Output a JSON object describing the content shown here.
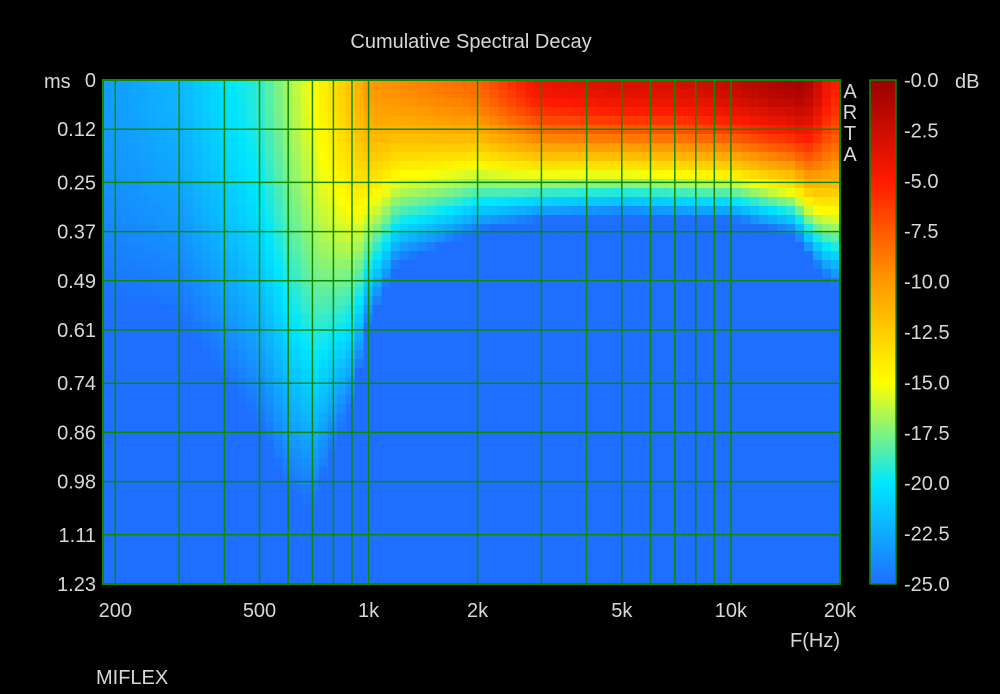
{
  "chart_data": {
    "type": "heatmap",
    "title": "Cumulative Spectral Decay",
    "xlabel": "F(Hz)",
    "ylabel": "ms",
    "watermark": "ARTA",
    "footer": "MIFLEX",
    "x_scale": "log",
    "xlim": [
      185,
      20000
    ],
    "ylim": [
      0,
      1.23
    ],
    "x_tick_values": [
      200,
      500,
      1000,
      2000,
      5000,
      10000,
      20000
    ],
    "x_tick_labels": [
      "200",
      "500",
      "1k",
      "2k",
      "5k",
      "10k",
      "20k"
    ],
    "y_tick_values": [
      0,
      0.12,
      0.25,
      0.37,
      0.49,
      0.61,
      0.74,
      0.86,
      0.98,
      1.11,
      1.23
    ],
    "y_tick_labels": [
      "0",
      "0.12",
      "0.25",
      "0.37",
      "0.49",
      "0.61",
      "0.74",
      "0.86",
      "0.98",
      "1.11",
      "1.23"
    ],
    "colorbar": {
      "unit": "dB",
      "range": [
        -25,
        0
      ],
      "tick_values": [
        0,
        -2.5,
        -5,
        -7.5,
        -10,
        -12.5,
        -15,
        -17.5,
        -20,
        -22.5,
        -25
      ],
      "tick_labels": [
        "-0.0",
        "-2.5",
        "-5.0",
        "-7.5",
        "-10.0",
        "-12.5",
        "-15.0",
        "-17.5",
        "-20.0",
        "-22.5",
        "-25.0"
      ],
      "colormap": [
        "#1e6fff",
        "#00e6ff",
        "#ffff00",
        "#ff9900",
        "#ff1a00",
        "#990000"
      ]
    },
    "initial_level_db": {
      "freq_hz": [
        200,
        300,
        500,
        700,
        900,
        1000,
        2000,
        3000,
        5000,
        7000,
        10000,
        13000,
        16000,
        19000
      ],
      "level": [
        -23,
        -22,
        -19,
        -15,
        -12,
        -10,
        -8,
        -4,
        -3,
        -3,
        -2,
        -1,
        -0.5,
        -5
      ]
    },
    "decay_time_ms": {
      "freq_hz": [
        200,
        300,
        500,
        600,
        700,
        800,
        900,
        1000,
        1200,
        2000,
        3000,
        5000,
        8000,
        10000,
        15000,
        17000,
        19000
      ],
      "time": [
        0.55,
        0.58,
        0.85,
        1.0,
        1.05,
        0.9,
        0.8,
        0.6,
        0.45,
        0.37,
        0.34,
        0.33,
        0.34,
        0.34,
        0.38,
        0.45,
        0.5
      ]
    },
    "grid": true,
    "grid_color": "#118800",
    "background_color": "#000000",
    "plot_background_color": "#1e6fff"
  }
}
